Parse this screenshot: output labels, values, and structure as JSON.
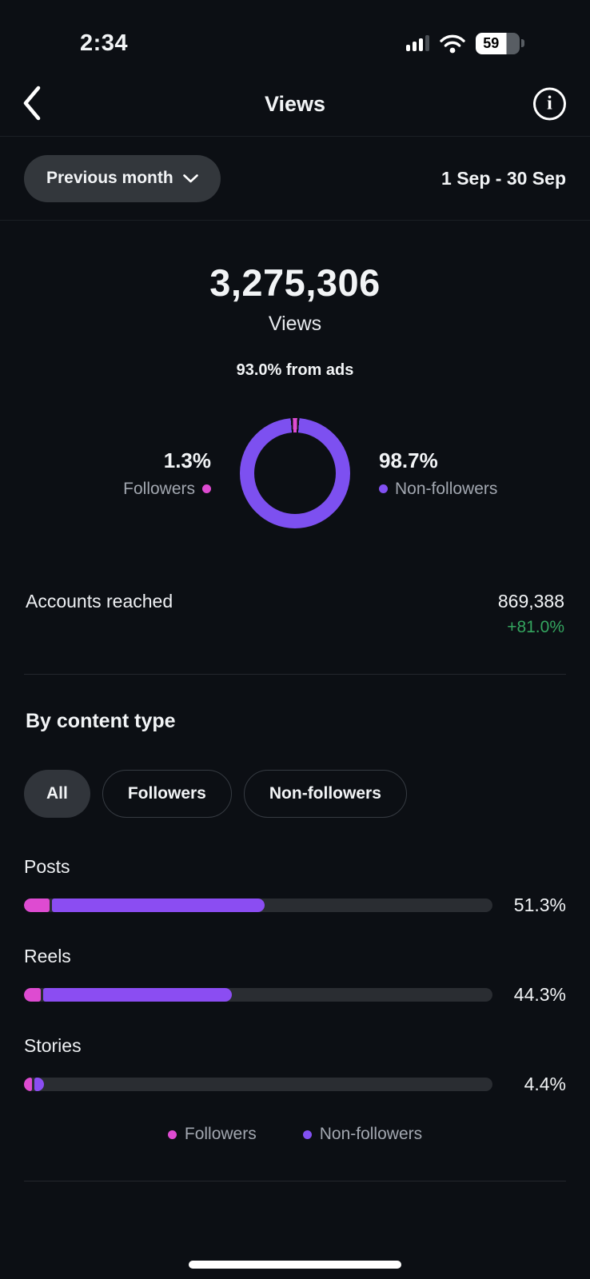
{
  "status_bar": {
    "time": "2:34",
    "battery_percent": "59"
  },
  "header": {
    "title": "Views"
  },
  "filter_bar": {
    "period_selector": "Previous month",
    "date_range": "1 Sep - 30 Sep"
  },
  "summary": {
    "total_views": "3,275,306",
    "total_label": "Views",
    "ads_note": "93.0% from ads"
  },
  "audience": {
    "followers_pct": "1.3%",
    "followers_label": "Followers",
    "non_followers_pct": "98.7%",
    "non_followers_label": "Non-followers"
  },
  "accounts_reached": {
    "label": "Accounts reached",
    "value": "869,388",
    "change": "+81.0%"
  },
  "content_type": {
    "section_title": "By content type",
    "filter_all": "All",
    "filter_followers": "Followers",
    "filter_non_followers": "Non-followers",
    "rows": [
      {
        "label": "Posts",
        "value_label": "51.3%",
        "followers_track_pct": 5.5,
        "non_followers_track_pct": 45.3
      },
      {
        "label": "Reels",
        "value_label": "44.3%",
        "followers_track_pct": 3.5,
        "non_followers_track_pct": 40.3
      },
      {
        "label": "Stories",
        "value_label": "4.4%",
        "followers_track_pct": 1.7,
        "non_followers_track_pct": 2.1
      }
    ],
    "legend_followers": "Followers",
    "legend_non_followers": "Non-followers"
  },
  "chart_data": [
    {
      "type": "pie",
      "style": "donut",
      "title": "Views by follower status",
      "labels": [
        "Followers",
        "Non-followers"
      ],
      "values": [
        1.3,
        98.7
      ],
      "unit": "percent",
      "colors": [
        "#de4bd1",
        "#7d50f0"
      ],
      "legend_position": "sides"
    },
    {
      "type": "bar",
      "title": "Views by content type",
      "categories": [
        "Posts",
        "Reels",
        "Stories"
      ],
      "values": [
        51.3,
        44.3,
        4.4
      ],
      "unit": "percent",
      "orientation": "horizontal",
      "xlim": [
        0,
        100
      ],
      "series": [
        {
          "name": "Followers",
          "color": "#de4bd1"
        },
        {
          "name": "Non-followers",
          "color": "#8b4df2"
        }
      ]
    }
  ],
  "icons": {
    "back": "chevron-left-icon",
    "info": "info-icon",
    "dropdown": "chevron-down-icon",
    "signal": "cellular-signal-icon",
    "wifi": "wifi-icon",
    "battery": "battery-icon"
  },
  "colors": {
    "background": "#0c0f14",
    "pink": "#de4bd1",
    "purple_donut": "#7d50f0",
    "purple_bar": "#8b4df2",
    "green": "#34a55f",
    "track": "#2a2d32"
  }
}
